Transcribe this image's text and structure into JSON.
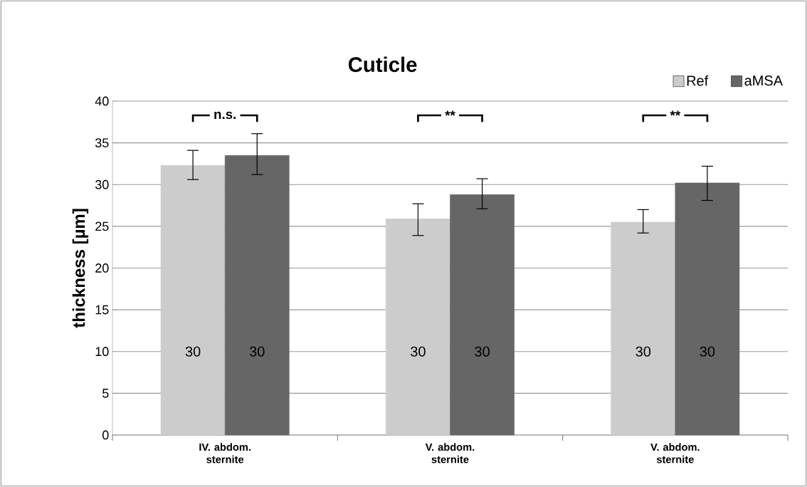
{
  "chart_data": {
    "type": "bar",
    "title": "Cuticle",
    "ylabel": "thickness [µm]",
    "categories": [
      "IV. abdom. sternite",
      "V. abdom. sternite",
      "V. abdom. sternite"
    ],
    "series": [
      {
        "name": "Ref",
        "color": "#cccccc",
        "values": [
          32.3,
          25.9,
          25.5
        ],
        "errors": [
          [
            30.6,
            34.1
          ],
          [
            23.9,
            27.7
          ],
          [
            24.2,
            27.0
          ]
        ]
      },
      {
        "name": "aMSA",
        "color": "#666666",
        "values": [
          33.5,
          28.8,
          30.2
        ],
        "errors": [
          [
            31.2,
            36.1
          ],
          [
            27.1,
            30.7
          ],
          [
            28.1,
            32.2
          ]
        ]
      }
    ],
    "ylim": [
      0,
      40
    ],
    "yticks": [
      0,
      5,
      10,
      15,
      20,
      25,
      30,
      35,
      40
    ],
    "grid": "y",
    "legend": "top right",
    "annotations": [
      "n.s.",
      "**",
      "**",
      "30",
      "30",
      "30",
      "30",
      "30",
      "30"
    ]
  }
}
